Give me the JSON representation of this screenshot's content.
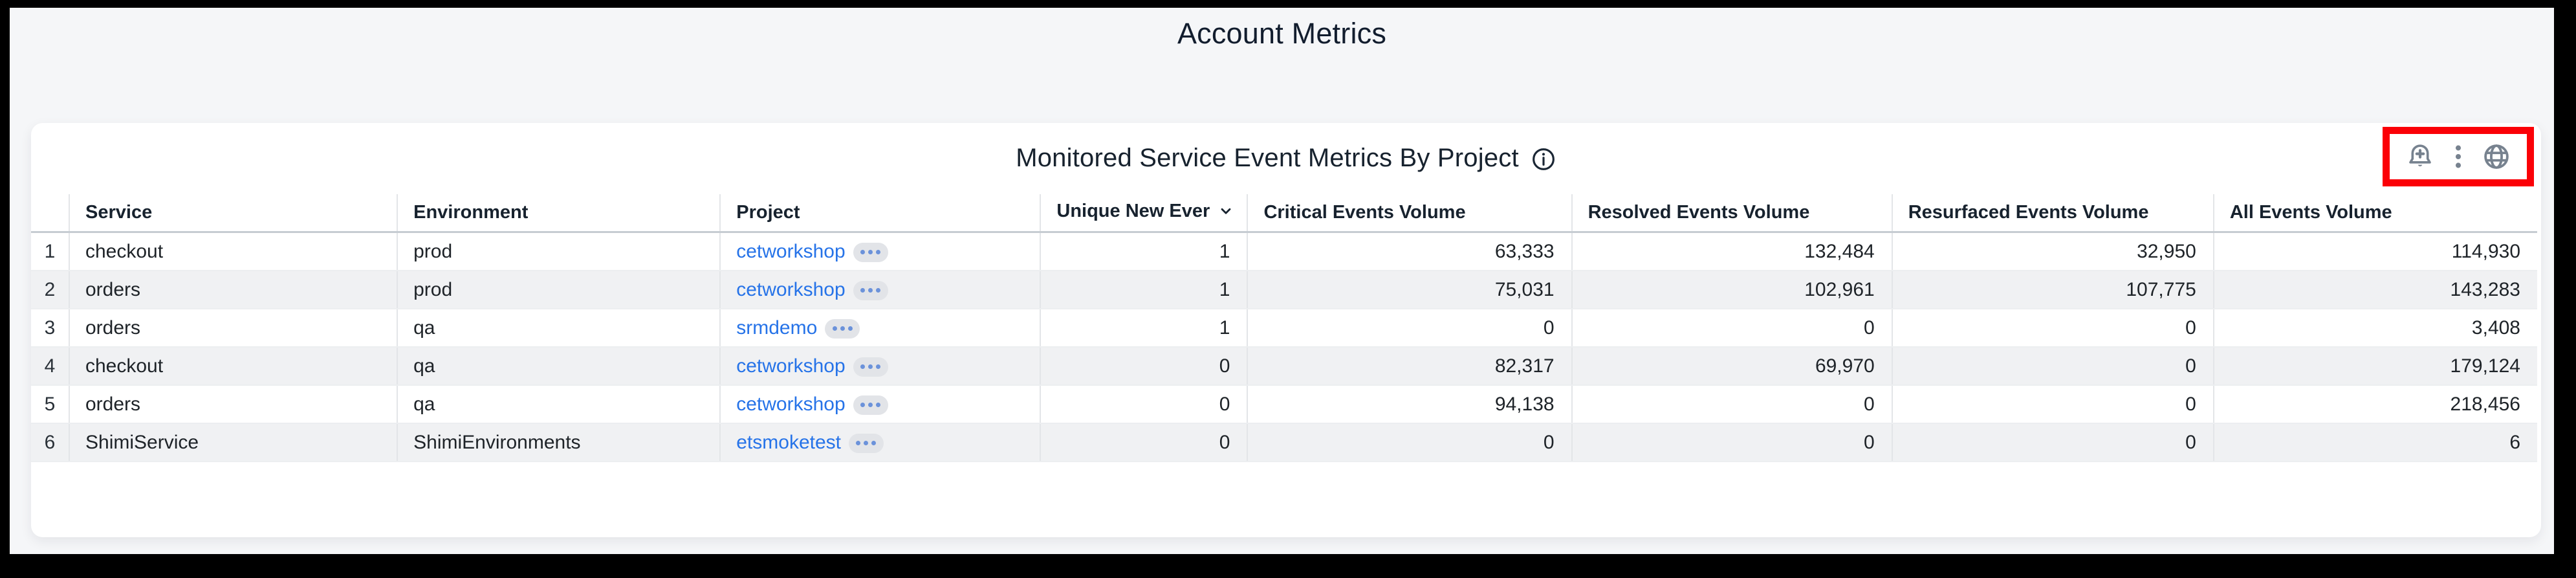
{
  "page": {
    "title": "Account Metrics"
  },
  "widget": {
    "title": "Monitored Service Event Metrics By Project",
    "toolbar": {
      "highlight_color": "#fb0007",
      "icon_color": "#77828f",
      "icons": [
        {
          "name": "add-alert-bell-icon"
        },
        {
          "name": "kebab-menu-icon"
        },
        {
          "name": "globe-icon"
        }
      ]
    }
  },
  "table": {
    "columns": [
      {
        "key": "service",
        "label": "Service"
      },
      {
        "key": "environment",
        "label": "Environment"
      },
      {
        "key": "project",
        "label": "Project"
      },
      {
        "key": "unique_new",
        "label": "Unique New Ever",
        "sorted": "desc"
      },
      {
        "key": "critical",
        "label": "Critical Events Volume"
      },
      {
        "key": "resolved",
        "label": "Resolved Events Volume"
      },
      {
        "key": "resurfaced",
        "label": "Resurfaced Events Volume"
      },
      {
        "key": "all_events",
        "label": "All Events Volume"
      }
    ],
    "link_color": "#2673e8",
    "stripe_color": "#f0f1f3",
    "rows": [
      {
        "index": "1",
        "service": "checkout",
        "environment": "prod",
        "project": "cetworkshop",
        "unique_new": "1",
        "critical": "63,333",
        "resolved": "132,484",
        "resurfaced": "32,950",
        "all_events": "114,930"
      },
      {
        "index": "2",
        "service": "orders",
        "environment": "prod",
        "project": "cetworkshop",
        "unique_new": "1",
        "critical": "75,031",
        "resolved": "102,961",
        "resurfaced": "107,775",
        "all_events": "143,283"
      },
      {
        "index": "3",
        "service": "orders",
        "environment": "qa",
        "project": "srmdemo",
        "unique_new": "1",
        "critical": "0",
        "resolved": "0",
        "resurfaced": "0",
        "all_events": "3,408"
      },
      {
        "index": "4",
        "service": "checkout",
        "environment": "qa",
        "project": "cetworkshop",
        "unique_new": "0",
        "critical": "82,317",
        "resolved": "69,970",
        "resurfaced": "0",
        "all_events": "179,124"
      },
      {
        "index": "5",
        "service": "orders",
        "environment": "qa",
        "project": "cetworkshop",
        "unique_new": "0",
        "critical": "94,138",
        "resolved": "0",
        "resurfaced": "0",
        "all_events": "218,456"
      },
      {
        "index": "6",
        "service": "ShimiService",
        "environment": "ShimiEnvironments",
        "project": "etsmoketest",
        "unique_new": "0",
        "critical": "0",
        "resolved": "0",
        "resurfaced": "0",
        "all_events": "6"
      }
    ]
  }
}
